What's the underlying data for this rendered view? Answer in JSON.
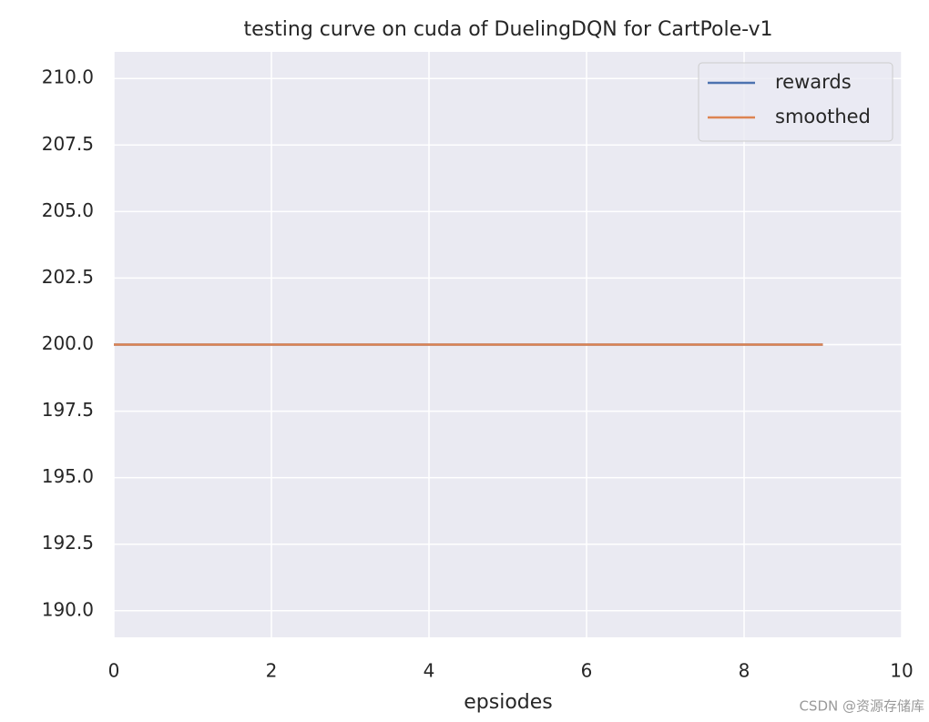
{
  "chart_data": {
    "type": "line",
    "title": "testing curve on cuda of DuelingDQN for CartPole-v1",
    "x_label": "epsiodes",
    "x": [
      0,
      1,
      2,
      3,
      4,
      5,
      6,
      7,
      8,
      9
    ],
    "series": [
      {
        "name": "rewards",
        "color": "#4c72b0",
        "values": [
          200,
          200,
          200,
          200,
          200,
          200,
          200,
          200,
          200,
          200
        ]
      },
      {
        "name": "smoothed",
        "color": "#dd8452",
        "values": [
          200,
          200,
          200,
          200,
          200,
          200,
          200,
          200,
          200,
          200
        ]
      }
    ],
    "xlim": [
      0,
      10
    ],
    "xticks": [
      0,
      2,
      4,
      6,
      8,
      10
    ],
    "ylim": [
      189,
      211
    ],
    "yticks": [
      {
        "value": 190,
        "label": "190.0"
      },
      192.5,
      {
        "value": 195,
        "label": "195.0"
      },
      197.5,
      {
        "value": 200,
        "label": "200.0"
      },
      202.5,
      {
        "value": 205,
        "label": "205.0"
      },
      207.5,
      {
        "value": 210,
        "label": "210.0"
      }
    ],
    "grid": true,
    "legend": "upper right",
    "watermark": "CSDN @资源存储库"
  }
}
